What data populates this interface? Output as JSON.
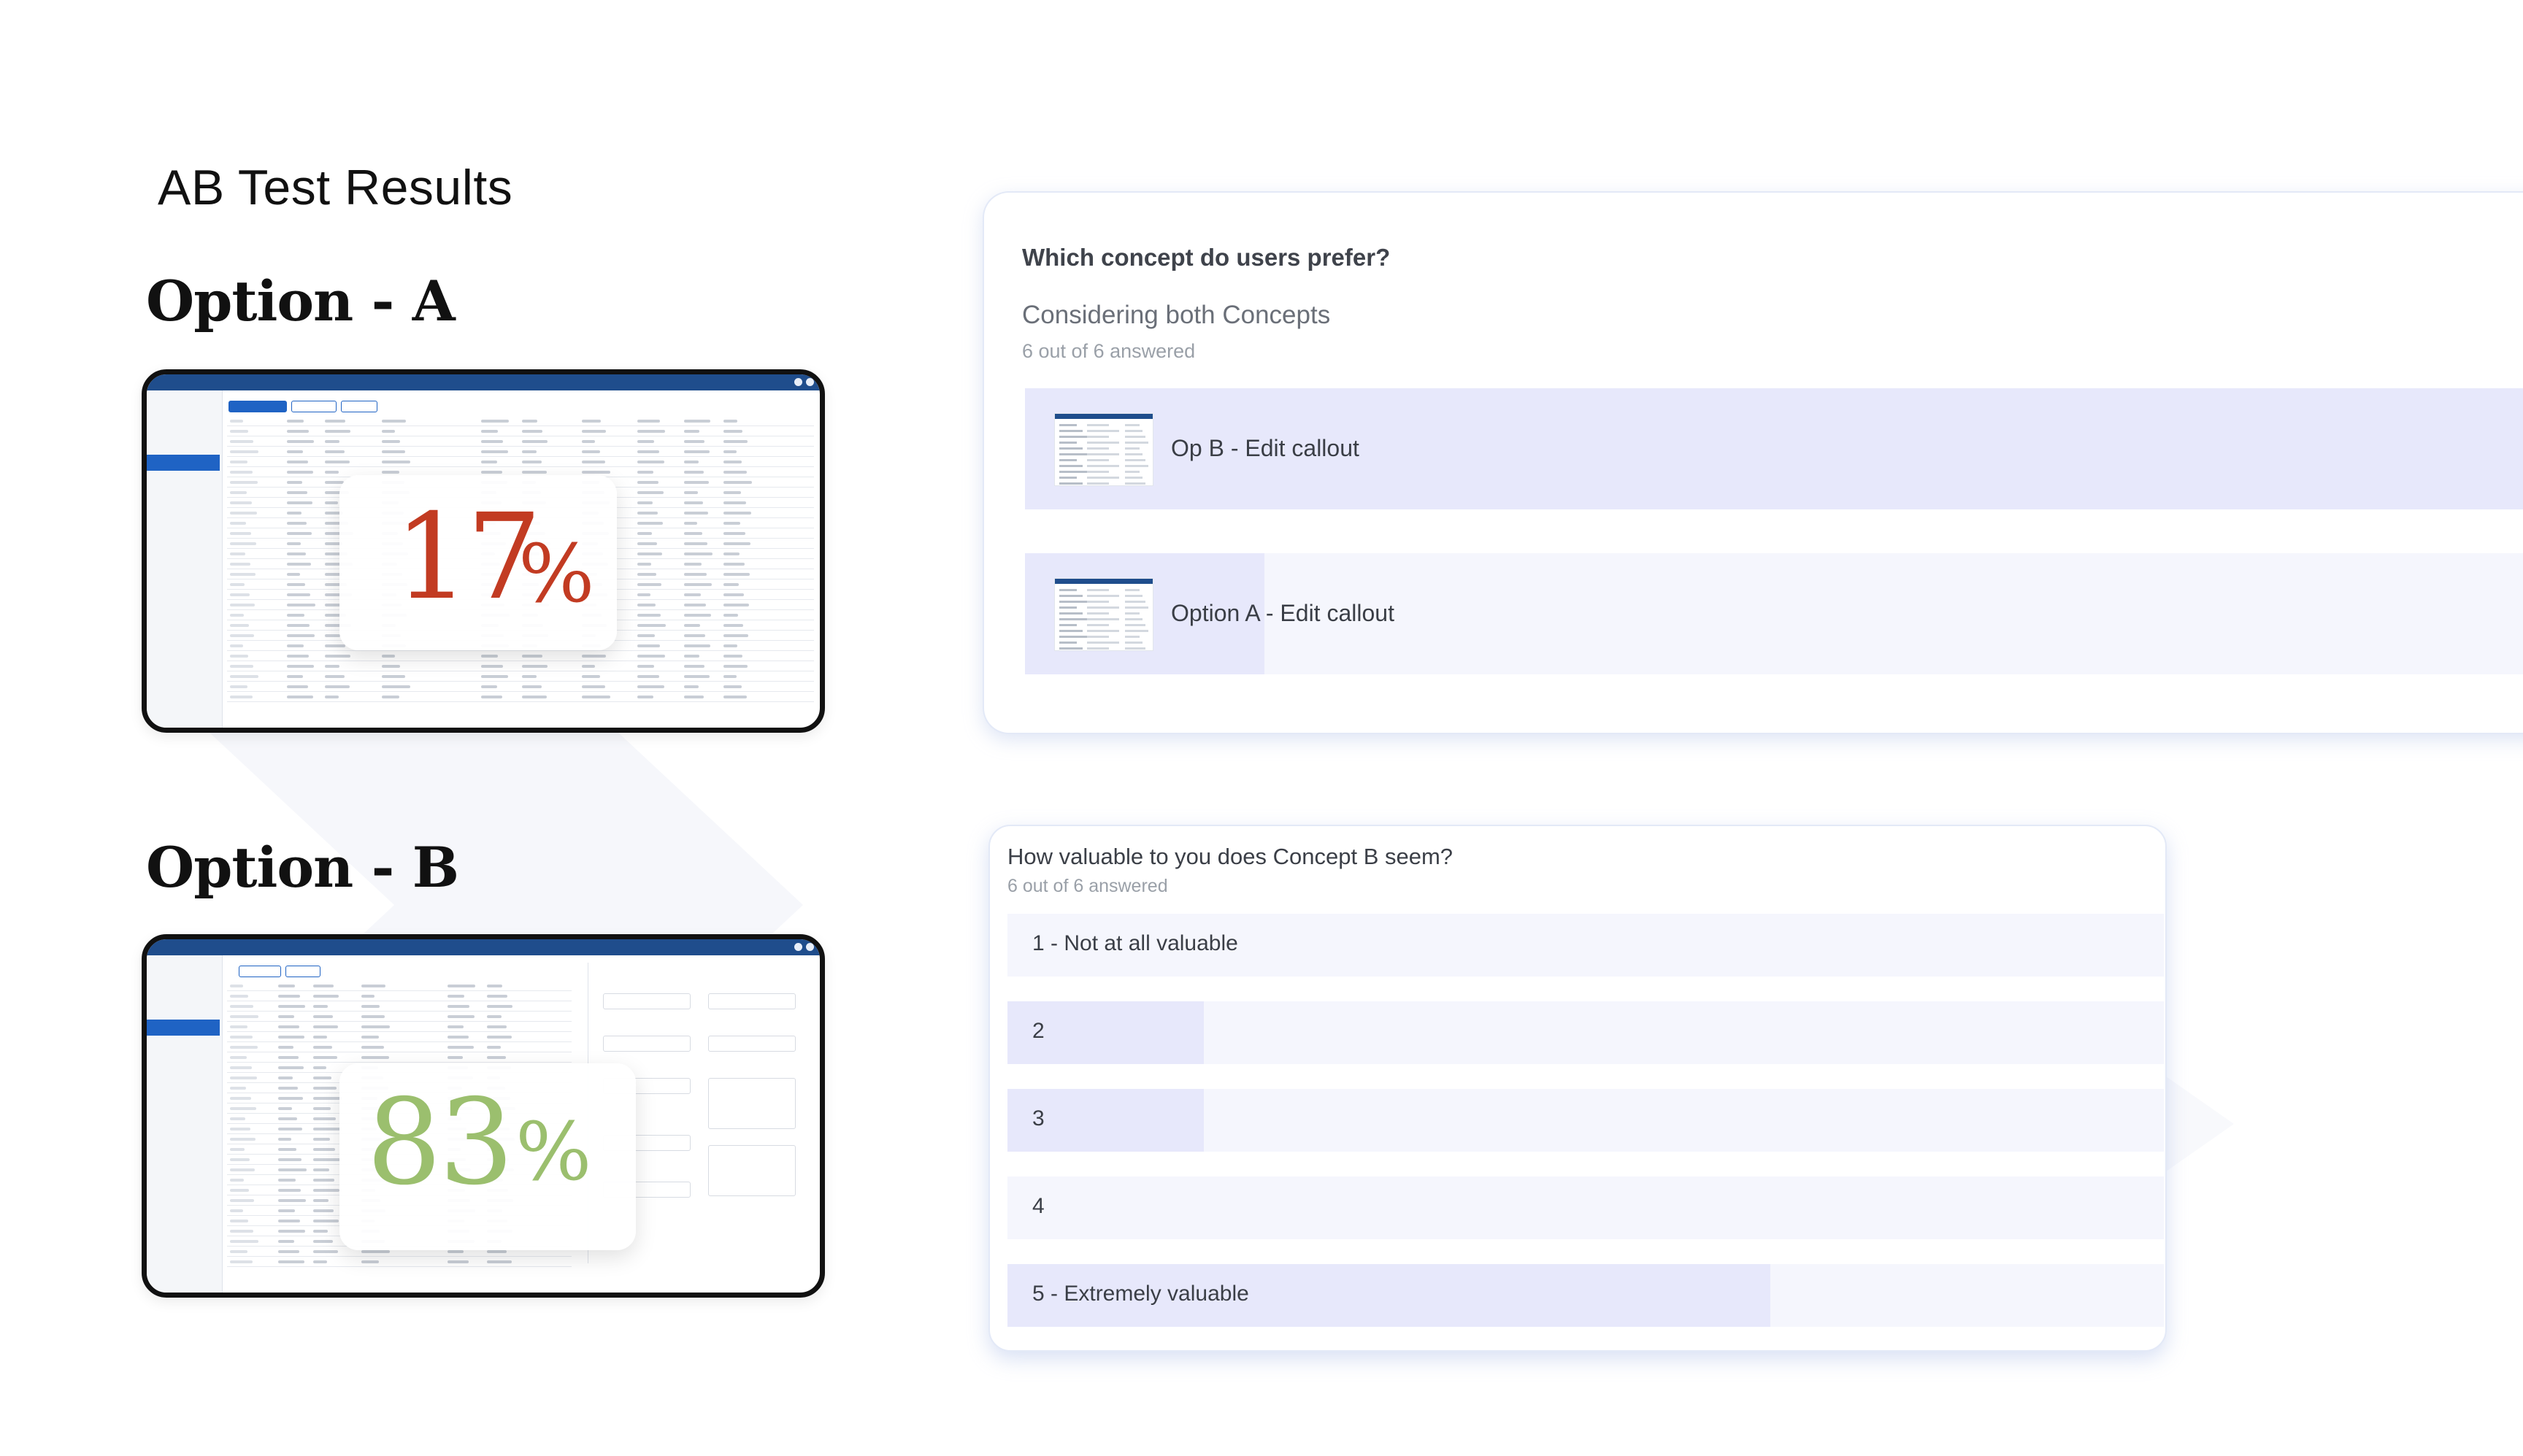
{
  "page": {
    "title": "AB Test Results"
  },
  "option_a": {
    "heading": "Option - A",
    "percent": "17",
    "percent_sign": "%",
    "percent_color": "#c23b22",
    "percent_value": 17
  },
  "option_b": {
    "heading": "Option - B",
    "percent": "83",
    "percent_sign": "%",
    "percent_color": "#9bbf6e",
    "percent_value": 83
  },
  "question1": {
    "title": "Which concept do users prefer?",
    "subtitle": "Considering both Concepts",
    "answered": "6 out of 6 answered",
    "answers": [
      {
        "label": "Op B - Edit callout",
        "share": 1.0
      },
      {
        "label": "Option A - Edit callout",
        "share": 0.16
      }
    ]
  },
  "question2": {
    "title": "How valuable to you does Concept B seem?",
    "answered": "6 out of 6 answered",
    "answers": [
      {
        "label": "1 - Not at all valuable",
        "share": 0.0
      },
      {
        "label": "2",
        "share": 0.17
      },
      {
        "label": "3",
        "share": 0.17
      },
      {
        "label": "4",
        "share": 0.0
      },
      {
        "label": "5 - Extremely valuable",
        "share": 0.66
      }
    ]
  },
  "colors": {
    "accent_fill": "#e7e8fb",
    "answer_bg": "#f5f6fd",
    "app_bar": "#1f4d8c"
  }
}
